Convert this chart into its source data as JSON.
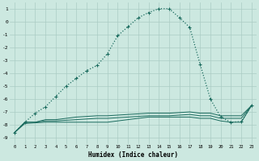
{
  "xlabel": "Humidex (Indice chaleur)",
  "background_color": "#cce8e0",
  "grid_color": "#aaccc4",
  "line_color": "#1a6b5e",
  "xlim": [
    -0.5,
    23.5
  ],
  "ylim": [
    -9.5,
    1.5
  ],
  "xticks": [
    0,
    1,
    2,
    3,
    4,
    5,
    6,
    7,
    8,
    9,
    10,
    11,
    12,
    13,
    14,
    15,
    16,
    17,
    18,
    19,
    20,
    21,
    22,
    23
  ],
  "yticks": [
    -9,
    -8,
    -7,
    -6,
    -5,
    -4,
    -3,
    -2,
    -1,
    0,
    1
  ],
  "main_x": [
    0,
    1,
    2,
    3,
    4,
    5,
    6,
    7,
    8,
    9,
    10,
    11,
    12,
    13,
    14,
    15,
    16,
    17,
    18,
    19,
    20,
    21,
    22,
    23
  ],
  "main_y": [
    -8.6,
    -7.8,
    -7.1,
    -6.6,
    -5.8,
    -5.0,
    -4.4,
    -3.8,
    -3.4,
    -2.5,
    -1.1,
    -0.4,
    0.3,
    0.7,
    1.0,
    1.0,
    0.3,
    -0.45,
    -3.3,
    -6.0,
    -7.4,
    -7.8,
    -7.75,
    -6.5
  ],
  "flat_series": [
    [
      -8.6,
      -7.8,
      -7.8,
      -7.6,
      -7.6,
      -7.5,
      -7.4,
      -7.35,
      -7.3,
      -7.3,
      -7.25,
      -7.2,
      -7.15,
      -7.1,
      -7.1,
      -7.1,
      -7.05,
      -7.0,
      -7.1,
      -7.1,
      -7.3,
      -7.3,
      -7.3,
      -6.5
    ],
    [
      -8.6,
      -7.8,
      -7.8,
      -7.7,
      -7.7,
      -7.65,
      -7.6,
      -7.55,
      -7.5,
      -7.5,
      -7.45,
      -7.4,
      -7.35,
      -7.3,
      -7.3,
      -7.3,
      -7.25,
      -7.2,
      -7.3,
      -7.3,
      -7.5,
      -7.5,
      -7.5,
      -6.5
    ],
    [
      -8.6,
      -7.9,
      -7.85,
      -7.8,
      -7.8,
      -7.8,
      -7.8,
      -7.8,
      -7.8,
      -7.8,
      -7.7,
      -7.6,
      -7.5,
      -7.4,
      -7.4,
      -7.4,
      -7.4,
      -7.4,
      -7.5,
      -7.5,
      -7.7,
      -7.8,
      -7.8,
      -6.5
    ]
  ]
}
